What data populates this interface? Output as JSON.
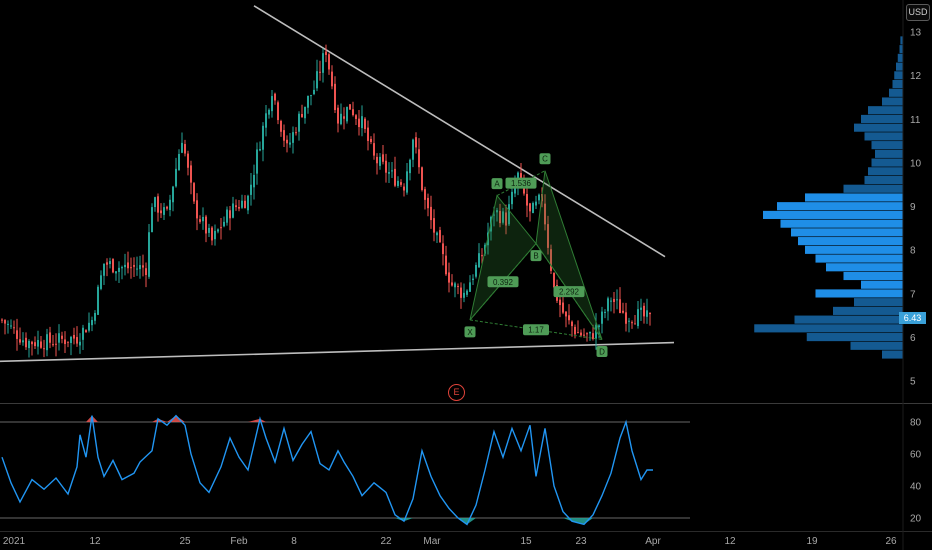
{
  "toolbar": {
    "currency": "USD"
  },
  "event_marker": {
    "label": "E"
  },
  "last_price": {
    "label": "6.43",
    "value": 6.43,
    "color": "#3aa0d8"
  },
  "colors": {
    "background": "#000000",
    "up": "#26a69a",
    "down": "#ef5350",
    "trendline": "#bdbdbd",
    "pattern": "#2f7d34",
    "volume_profile": "#2196f3",
    "oscillator": "#2196f3",
    "overbought": "#ef5350",
    "oversold": "#26a69a"
  },
  "chart_data": [
    {
      "type": "candlestick",
      "panel": "price",
      "x_ticks": [
        "2021",
        "12",
        "25",
        "Feb",
        "8",
        "22",
        "Mar",
        "15",
        "23",
        "Apr",
        "12",
        "19",
        "26"
      ],
      "y_ticks": [
        "5",
        "6",
        "7",
        "8",
        "9",
        "10",
        "11",
        "12",
        "13"
      ],
      "ylim": [
        4.6,
        13.3
      ],
      "close_path": [
        {
          "x": 0,
          "y": 6.4
        },
        {
          "x": 8,
          "y": 5.9
        },
        {
          "x": 16,
          "y": 5.9
        },
        {
          "x": 25,
          "y": 6.0
        },
        {
          "x": 30,
          "y": 6.4
        },
        {
          "x": 34,
          "y": 7.7
        },
        {
          "x": 40,
          "y": 7.6
        },
        {
          "x": 48,
          "y": 7.6
        },
        {
          "x": 50,
          "y": 9.1
        },
        {
          "x": 55,
          "y": 8.8
        },
        {
          "x": 60,
          "y": 10.6
        },
        {
          "x": 64,
          "y": 9.0
        },
        {
          "x": 70,
          "y": 8.2
        },
        {
          "x": 76,
          "y": 8.9
        },
        {
          "x": 82,
          "y": 9.2
        },
        {
          "x": 86,
          "y": 10.5
        },
        {
          "x": 90,
          "y": 11.7
        },
        {
          "x": 95,
          "y": 10.3
        },
        {
          "x": 100,
          "y": 11.2
        },
        {
          "x": 104,
          "y": 11.7
        },
        {
          "x": 108,
          "y": 12.6
        },
        {
          "x": 112,
          "y": 11.0
        },
        {
          "x": 116,
          "y": 11.3
        },
        {
          "x": 120,
          "y": 10.9
        },
        {
          "x": 124,
          "y": 10.1
        },
        {
          "x": 130,
          "y": 9.7
        },
        {
          "x": 134,
          "y": 9.5
        },
        {
          "x": 137,
          "y": 10.6
        },
        {
          "x": 141,
          "y": 9.1
        },
        {
          "x": 146,
          "y": 8.0
        },
        {
          "x": 150,
          "y": 7.2
        },
        {
          "x": 154,
          "y": 7.0
        },
        {
          "x": 160,
          "y": 7.9
        },
        {
          "x": 164,
          "y": 8.9
        },
        {
          "x": 168,
          "y": 8.7
        },
        {
          "x": 172,
          "y": 9.7
        },
        {
          "x": 176,
          "y": 8.8
        },
        {
          "x": 180,
          "y": 9.2
        },
        {
          "x": 184,
          "y": 7.1
        },
        {
          "x": 188,
          "y": 6.4
        },
        {
          "x": 192,
          "y": 6.1
        },
        {
          "x": 196,
          "y": 6.0
        },
        {
          "x": 199,
          "y": 6.3
        },
        {
          "x": 203,
          "y": 6.9
        },
        {
          "x": 208,
          "y": 6.5
        },
        {
          "x": 213,
          "y": 6.5
        },
        {
          "x": 216,
          "y": 6.4
        }
      ],
      "harmonic_pattern": {
        "points": [
          {
            "label": "X",
            "x": 156,
            "y": 6.4
          },
          {
            "label": "A",
            "x": 165,
            "y": 9.25
          },
          {
            "label": "B",
            "x": 178,
            "y": 8.15
          },
          {
            "label": "C",
            "x": 181,
            "y": 9.82
          },
          {
            "label": "D",
            "x": 200,
            "y": 5.95
          }
        ],
        "ratios": [
          "0.392",
          "1.536",
          "2.292",
          "1.17"
        ]
      },
      "trendlines": [
        {
          "from": {
            "x": 84,
            "y": 13.6
          },
          "to": {
            "x": 221,
            "y": 7.85
          }
        },
        {
          "from": {
            "x": -1,
            "y": 5.45
          },
          "to": {
            "x": 224,
            "y": 5.88
          }
        }
      ]
    },
    {
      "type": "histogram",
      "panel": "volume-profile",
      "levels": [
        {
          "price": 5.6,
          "volume": 0.12
        },
        {
          "price": 5.8,
          "volume": 0.3
        },
        {
          "price": 6.0,
          "volume": 0.55
        },
        {
          "price": 6.2,
          "volume": 0.85
        },
        {
          "price": 6.4,
          "volume": 0.62
        },
        {
          "price": 6.6,
          "volume": 0.4
        },
        {
          "price": 6.8,
          "volume": 0.28
        },
        {
          "price": 7.0,
          "volume": 0.5
        },
        {
          "price": 7.2,
          "volume": 0.24
        },
        {
          "price": 7.4,
          "volume": 0.34
        },
        {
          "price": 7.6,
          "volume": 0.44
        },
        {
          "price": 7.8,
          "volume": 0.5
        },
        {
          "price": 8.0,
          "volume": 0.56
        },
        {
          "price": 8.2,
          "volume": 0.6
        },
        {
          "price": 8.4,
          "volume": 0.64
        },
        {
          "price": 8.6,
          "volume": 0.7
        },
        {
          "price": 8.8,
          "volume": 0.8
        },
        {
          "price": 9.0,
          "volume": 0.72
        },
        {
          "price": 9.2,
          "volume": 0.56
        },
        {
          "price": 9.4,
          "volume": 0.34
        },
        {
          "price": 9.6,
          "volume": 0.22
        },
        {
          "price": 9.8,
          "volume": 0.2
        },
        {
          "price": 10.0,
          "volume": 0.18
        },
        {
          "price": 10.2,
          "volume": 0.16
        },
        {
          "price": 10.4,
          "volume": 0.18
        },
        {
          "price": 10.6,
          "volume": 0.22
        },
        {
          "price": 10.8,
          "volume": 0.28
        },
        {
          "price": 11.0,
          "volume": 0.24
        },
        {
          "price": 11.2,
          "volume": 0.2
        },
        {
          "price": 11.4,
          "volume": 0.12
        },
        {
          "price": 11.6,
          "volume": 0.08
        },
        {
          "price": 11.8,
          "volume": 0.06
        },
        {
          "price": 12.0,
          "volume": 0.05
        },
        {
          "price": 12.2,
          "volume": 0.04
        },
        {
          "price": 12.4,
          "volume": 0.03
        },
        {
          "price": 12.6,
          "volume": 0.02
        },
        {
          "price": 12.8,
          "volume": 0.015
        }
      ]
    },
    {
      "type": "line",
      "panel": "oscillator",
      "y_ticks": [
        "20",
        "40",
        "60",
        "80"
      ],
      "ylim": [
        15,
        92
      ],
      "thresholds": [
        20,
        80
      ],
      "points": [
        {
          "x": 0,
          "y": 58
        },
        {
          "x": 3,
          "y": 42
        },
        {
          "x": 6,
          "y": 30
        },
        {
          "x": 10,
          "y": 44
        },
        {
          "x": 14,
          "y": 38
        },
        {
          "x": 18,
          "y": 45
        },
        {
          "x": 22,
          "y": 35
        },
        {
          "x": 25,
          "y": 52
        },
        {
          "x": 26,
          "y": 72
        },
        {
          "x": 28,
          "y": 58
        },
        {
          "x": 30,
          "y": 84
        },
        {
          "x": 32,
          "y": 58
        },
        {
          "x": 34,
          "y": 46
        },
        {
          "x": 37,
          "y": 56
        },
        {
          "x": 40,
          "y": 44
        },
        {
          "x": 44,
          "y": 48
        },
        {
          "x": 46,
          "y": 55
        },
        {
          "x": 50,
          "y": 62
        },
        {
          "x": 52,
          "y": 82
        },
        {
          "x": 55,
          "y": 78
        },
        {
          "x": 58,
          "y": 84
        },
        {
          "x": 61,
          "y": 78
        },
        {
          "x": 63,
          "y": 60
        },
        {
          "x": 66,
          "y": 42
        },
        {
          "x": 69,
          "y": 36
        },
        {
          "x": 73,
          "y": 52
        },
        {
          "x": 76,
          "y": 70
        },
        {
          "x": 79,
          "y": 58
        },
        {
          "x": 82,
          "y": 50
        },
        {
          "x": 86,
          "y": 82
        },
        {
          "x": 88,
          "y": 70
        },
        {
          "x": 91,
          "y": 55
        },
        {
          "x": 94,
          "y": 76
        },
        {
          "x": 97,
          "y": 56
        },
        {
          "x": 100,
          "y": 66
        },
        {
          "x": 103,
          "y": 74
        },
        {
          "x": 106,
          "y": 54
        },
        {
          "x": 109,
          "y": 50
        },
        {
          "x": 112,
          "y": 62
        },
        {
          "x": 114,
          "y": 55
        },
        {
          "x": 117,
          "y": 46
        },
        {
          "x": 120,
          "y": 34
        },
        {
          "x": 124,
          "y": 42
        },
        {
          "x": 128,
          "y": 36
        },
        {
          "x": 131,
          "y": 22
        },
        {
          "x": 134,
          "y": 18
        },
        {
          "x": 137,
          "y": 32
        },
        {
          "x": 140,
          "y": 62
        },
        {
          "x": 143,
          "y": 46
        },
        {
          "x": 146,
          "y": 34
        },
        {
          "x": 149,
          "y": 26
        },
        {
          "x": 152,
          "y": 20
        },
        {
          "x": 155,
          "y": 16
        },
        {
          "x": 158,
          "y": 28
        },
        {
          "x": 161,
          "y": 50
        },
        {
          "x": 164,
          "y": 74
        },
        {
          "x": 167,
          "y": 58
        },
        {
          "x": 170,
          "y": 76
        },
        {
          "x": 173,
          "y": 62
        },
        {
          "x": 176,
          "y": 78
        },
        {
          "x": 178,
          "y": 46
        },
        {
          "x": 181,
          "y": 76
        },
        {
          "x": 184,
          "y": 40
        },
        {
          "x": 187,
          "y": 24
        },
        {
          "x": 190,
          "y": 18
        },
        {
          "x": 194,
          "y": 16
        },
        {
          "x": 197,
          "y": 22
        },
        {
          "x": 200,
          "y": 34
        },
        {
          "x": 203,
          "y": 48
        },
        {
          "x": 206,
          "y": 70
        },
        {
          "x": 208,
          "y": 80
        },
        {
          "x": 210,
          "y": 62
        },
        {
          "x": 213,
          "y": 44
        },
        {
          "x": 215,
          "y": 50
        },
        {
          "x": 217,
          "y": 50
        }
      ]
    }
  ]
}
